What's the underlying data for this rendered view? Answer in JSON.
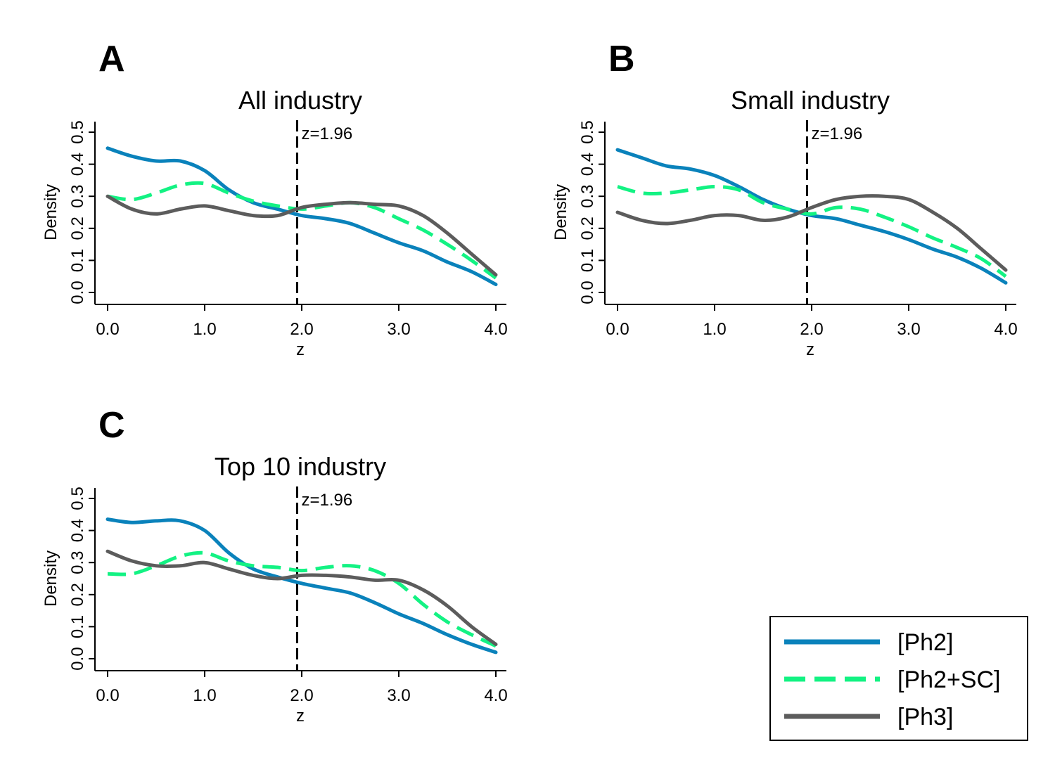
{
  "colors": {
    "ph2": "#0a82bb",
    "ph2sc": "#13f283",
    "ph3": "#5c5c5c",
    "axis": "#000000"
  },
  "legend": {
    "entries": [
      {
        "key": "ph2",
        "label": "[Ph2]",
        "style": "solid"
      },
      {
        "key": "ph2sc",
        "label": "[Ph2+SC]",
        "style": "dashed"
      },
      {
        "key": "ph3",
        "label": "[Ph3]",
        "style": "solid"
      }
    ]
  },
  "chart_data": [
    {
      "type": "line",
      "panel": "A",
      "title": "All industry",
      "xlabel": "z",
      "ylabel": "Density",
      "xlim": [
        0,
        4
      ],
      "ylim": [
        0,
        0.5
      ],
      "xticks": [
        "0.0",
        "1.0",
        "2.0",
        "3.0",
        "4.0"
      ],
      "yticks": [
        "0.0",
        "0.1",
        "0.2",
        "0.3",
        "0.4",
        "0.5"
      ],
      "vline": {
        "x": 1.96,
        "label": "z=1.96"
      },
      "x": [
        0,
        0.25,
        0.5,
        0.75,
        1.0,
        1.25,
        1.5,
        1.75,
        2.0,
        2.25,
        2.5,
        2.75,
        3.0,
        3.25,
        3.5,
        3.75,
        4.0
      ],
      "series": [
        {
          "name": "[Ph2]",
          "key": "ph2",
          "values": [
            0.45,
            0.425,
            0.41,
            0.41,
            0.38,
            0.32,
            0.28,
            0.26,
            0.24,
            0.23,
            0.215,
            0.185,
            0.155,
            0.13,
            0.095,
            0.065,
            0.025
          ]
        },
        {
          "name": "[Ph2+SC]",
          "key": "ph2sc",
          "values": [
            0.3,
            0.29,
            0.31,
            0.335,
            0.34,
            0.31,
            0.285,
            0.27,
            0.26,
            0.27,
            0.28,
            0.265,
            0.23,
            0.195,
            0.15,
            0.1,
            0.045
          ]
        },
        {
          "name": "[Ph3]",
          "key": "ph3",
          "values": [
            0.3,
            0.26,
            0.245,
            0.26,
            0.27,
            0.255,
            0.24,
            0.24,
            0.265,
            0.275,
            0.28,
            0.275,
            0.27,
            0.24,
            0.185,
            0.12,
            0.055
          ]
        }
      ]
    },
    {
      "type": "line",
      "panel": "B",
      "title": "Small industry",
      "xlabel": "z",
      "ylabel": "Density",
      "xlim": [
        0,
        4
      ],
      "ylim": [
        0,
        0.5
      ],
      "xticks": [
        "0.0",
        "1.0",
        "2.0",
        "3.0",
        "4.0"
      ],
      "yticks": [
        "0.0",
        "0.1",
        "0.2",
        "0.3",
        "0.4",
        "0.5"
      ],
      "vline": {
        "x": 1.96,
        "label": "z=1.96"
      },
      "x": [
        0,
        0.25,
        0.5,
        0.75,
        1.0,
        1.25,
        1.5,
        1.75,
        2.0,
        2.25,
        2.5,
        2.75,
        3.0,
        3.25,
        3.5,
        3.75,
        4.0
      ],
      "series": [
        {
          "name": "[Ph2]",
          "key": "ph2",
          "values": [
            0.445,
            0.42,
            0.395,
            0.385,
            0.365,
            0.33,
            0.29,
            0.26,
            0.24,
            0.23,
            0.21,
            0.19,
            0.165,
            0.135,
            0.11,
            0.075,
            0.03
          ]
        },
        {
          "name": "[Ph2+SC]",
          "key": "ph2sc",
          "values": [
            0.33,
            0.31,
            0.31,
            0.32,
            0.33,
            0.32,
            0.28,
            0.26,
            0.245,
            0.265,
            0.26,
            0.235,
            0.205,
            0.17,
            0.14,
            0.105,
            0.05
          ]
        },
        {
          "name": "[Ph3]",
          "key": "ph3",
          "values": [
            0.25,
            0.225,
            0.215,
            0.225,
            0.24,
            0.24,
            0.225,
            0.235,
            0.265,
            0.29,
            0.3,
            0.3,
            0.29,
            0.25,
            0.2,
            0.135,
            0.07
          ]
        }
      ]
    },
    {
      "type": "line",
      "panel": "C",
      "title": "Top 10 industry",
      "xlabel": "z",
      "ylabel": "Density",
      "xlim": [
        0,
        4
      ],
      "ylim": [
        0,
        0.5
      ],
      "xticks": [
        "0.0",
        "1.0",
        "2.0",
        "3.0",
        "4.0"
      ],
      "yticks": [
        "0.0",
        "0.1",
        "0.2",
        "0.3",
        "0.4",
        "0.5"
      ],
      "vline": {
        "x": 1.96,
        "label": "z=1.96"
      },
      "x": [
        0,
        0.25,
        0.5,
        0.75,
        1.0,
        1.25,
        1.5,
        1.75,
        2.0,
        2.25,
        2.5,
        2.75,
        3.0,
        3.25,
        3.5,
        3.75,
        4.0
      ],
      "series": [
        {
          "name": "[Ph2]",
          "key": "ph2",
          "values": [
            0.435,
            0.425,
            0.43,
            0.43,
            0.4,
            0.33,
            0.28,
            0.255,
            0.235,
            0.22,
            0.205,
            0.175,
            0.14,
            0.11,
            0.075,
            0.045,
            0.02
          ]
        },
        {
          "name": "[Ph2+SC]",
          "key": "ph2sc",
          "values": [
            0.265,
            0.265,
            0.29,
            0.32,
            0.33,
            0.305,
            0.29,
            0.285,
            0.275,
            0.285,
            0.29,
            0.275,
            0.235,
            0.17,
            0.115,
            0.075,
            0.04
          ]
        },
        {
          "name": "[Ph3]",
          "key": "ph3",
          "values": [
            0.335,
            0.305,
            0.29,
            0.29,
            0.3,
            0.28,
            0.26,
            0.25,
            0.26,
            0.26,
            0.255,
            0.245,
            0.245,
            0.215,
            0.165,
            0.1,
            0.045
          ]
        }
      ]
    }
  ]
}
